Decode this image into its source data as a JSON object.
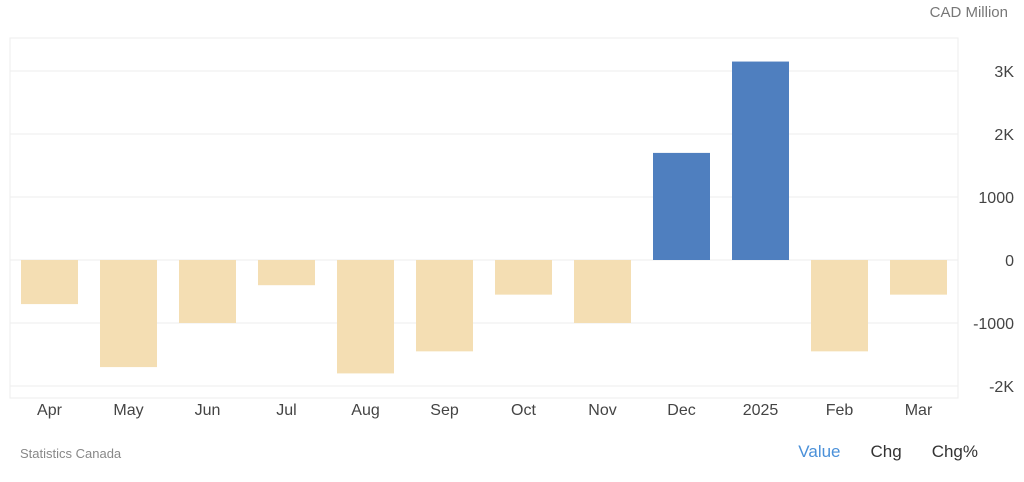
{
  "unit_label": "CAD Million",
  "source": "Statistics Canada",
  "toggles": {
    "value": "Value",
    "chg": "Chg",
    "chg_pct": "Chg%",
    "active": "Value"
  },
  "colors": {
    "positive": "#4f7fbf",
    "negative": "#f4deb3",
    "grid": "#ededed",
    "text": "#444444"
  },
  "chart_data": {
    "type": "bar",
    "categories": [
      "Apr",
      "May",
      "Jun",
      "Jul",
      "Aug",
      "Sep",
      "Oct",
      "Nov",
      "Dec",
      "2025",
      "Feb",
      "Mar"
    ],
    "values": [
      -700,
      -1700,
      -1000,
      -400,
      -1800,
      -1450,
      -550,
      -1000,
      1700,
      3150,
      -1450,
      -550
    ],
    "ylim": [
      -2000,
      3000
    ],
    "yticks": [
      3000,
      2000,
      1000,
      0,
      -1000,
      -2000
    ],
    "ytick_labels": [
      "3K",
      "2K",
      "1000",
      "0",
      "-1000",
      "-2K"
    ],
    "grid": true,
    "title": "",
    "xlabel": "",
    "ylabel": ""
  }
}
